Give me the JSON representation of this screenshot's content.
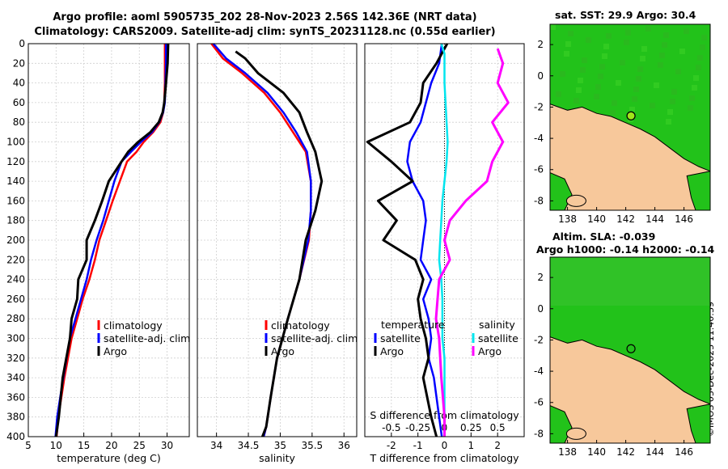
{
  "header": {
    "title_line1": "Argo profile: aoml 5905735_202 28-Nov-2023 2.56S 142.36E (NRT data)",
    "title_line2": "Climatology: CARS2009. Satellite-adj clim: synTS_20231128.nc (0.55d earlier)"
  },
  "colors": {
    "climatology": "#ff0000",
    "satellite": "#0000ff",
    "argo": "#000000",
    "satellite_salinity": "#00e5ee",
    "argo_salinity": "#ff00ff",
    "land": "#f7c89b",
    "sea": "#22c21a"
  },
  "chart_data": [
    {
      "id": "temperature",
      "type": "line",
      "xlabel": "temperature (deg C)",
      "ylabel": "",
      "xlim": [
        5,
        34
      ],
      "ylim": [
        0,
        400
      ],
      "y_reversed": true,
      "xticks": [
        "5",
        "10",
        "15",
        "20",
        "25",
        "30"
      ],
      "yticks": [
        "0",
        "20",
        "40",
        "60",
        "80",
        "100",
        "120",
        "140",
        "160",
        "180",
        "200",
        "220",
        "240",
        "260",
        "280",
        "300",
        "320",
        "340",
        "360",
        "380",
        "400"
      ],
      "legend": [
        "climatology",
        "satellite-adj. clim",
        "Argo"
      ],
      "legend_loc": "lower-right",
      "series": [
        {
          "name": "climatology",
          "color": "#ff0000",
          "x": [
            29.6,
            29.6,
            29.6,
            29.5,
            29.3,
            28.8,
            27.5,
            25.8,
            24.5,
            22.8,
            21.5,
            20.2,
            19.0,
            17.8,
            17.0,
            16.0,
            14.8,
            13.8,
            12.8,
            11.5,
            10.4,
            10.1
          ],
          "y": [
            0,
            20,
            40,
            60,
            70,
            80,
            90,
            100,
            110,
            120,
            140,
            160,
            180,
            200,
            220,
            240,
            260,
            280,
            300,
            340,
            380,
            400
          ]
        },
        {
          "name": "satellite-adj. clim",
          "color": "#0000ff",
          "x": [
            29.8,
            29.8,
            29.7,
            29.6,
            29.3,
            28.6,
            27.3,
            25.3,
            23.5,
            21.8,
            20.5,
            19.5,
            18.5,
            17.3,
            16.3,
            15.5,
            14.5,
            13.5,
            12.5,
            11.3,
            10.2,
            9.9
          ],
          "y": [
            0,
            20,
            40,
            60,
            70,
            80,
            90,
            100,
            110,
            120,
            140,
            160,
            180,
            200,
            220,
            240,
            260,
            280,
            300,
            340,
            380,
            400
          ]
        },
        {
          "name": "Argo",
          "color": "#000000",
          "x": [
            30.2,
            30.1,
            29.8,
            29.5,
            29.2,
            28.5,
            27.0,
            24.8,
            23.0,
            21.8,
            19.5,
            18.3,
            17.0,
            15.5,
            15.5,
            14.0,
            13.8,
            12.8,
            12.5,
            11.2,
            10.5,
            10.0
          ],
          "y": [
            0,
            20,
            40,
            60,
            70,
            80,
            90,
            100,
            110,
            120,
            140,
            160,
            180,
            200,
            220,
            240,
            260,
            280,
            300,
            340,
            380,
            400
          ]
        }
      ]
    },
    {
      "id": "salinity",
      "type": "line",
      "xlabel": "salinity",
      "ylabel": "",
      "xlim": [
        33.7,
        36.2
      ],
      "ylim": [
        0,
        400
      ],
      "y_reversed": true,
      "xticks": [
        "34",
        "34.5",
        "35",
        "35.5",
        "36"
      ],
      "legend": [
        "climatology",
        "satellite-adj. clim",
        "Argo"
      ],
      "legend_loc": "lower-right",
      "series": [
        {
          "name": "climatology",
          "color": "#ff0000",
          "x": [
            33.92,
            34.1,
            34.4,
            34.75,
            35.0,
            35.2,
            35.4,
            35.48,
            35.48,
            35.45,
            35.3,
            35.12,
            34.95,
            34.85,
            34.78,
            34.74
          ],
          "y": [
            0,
            15,
            30,
            50,
            70,
            90,
            110,
            140,
            170,
            200,
            240,
            280,
            320,
            360,
            390,
            400
          ]
        },
        {
          "name": "satellite-adj. clim",
          "color": "#0000ff",
          "x": [
            33.95,
            34.15,
            34.45,
            34.8,
            35.05,
            35.25,
            35.42,
            35.48,
            35.48,
            35.44,
            35.3,
            35.12,
            34.95,
            34.85,
            34.78,
            34.74
          ],
          "y": [
            0,
            15,
            30,
            50,
            70,
            90,
            110,
            140,
            170,
            200,
            240,
            280,
            320,
            360,
            390,
            400
          ]
        },
        {
          "name": "Argo",
          "color": "#000000",
          "x": [
            34.3,
            34.45,
            34.65,
            35.05,
            35.3,
            35.42,
            35.55,
            35.65,
            35.55,
            35.4,
            35.3,
            35.12,
            34.95,
            34.85,
            34.78,
            34.72
          ],
          "y": [
            8,
            15,
            30,
            50,
            70,
            90,
            110,
            140,
            170,
            200,
            240,
            280,
            320,
            360,
            390,
            400
          ]
        }
      ]
    },
    {
      "id": "differences",
      "type": "line",
      "xlabel": "T difference from climatology",
      "x2label": "S difference from climatology",
      "xlim": [
        -3,
        3
      ],
      "x2lim": [
        -0.75,
        0.75
      ],
      "ylim": [
        0,
        400
      ],
      "y_reversed": true,
      "xticks": [
        "-2",
        "-1",
        "0",
        "1",
        "2"
      ],
      "x2ticks": [
        "-0.5",
        "-0.25",
        "0",
        "0.25",
        "0.5"
      ],
      "legend_temperature_title": "temperature",
      "legend_salinity_title": "salinity",
      "legend_temperature": [
        "satellite",
        "Argo"
      ],
      "legend_salinity": [
        "satellite",
        "Argo"
      ],
      "series": [
        {
          "name": "temperature satellite",
          "axis": "T",
          "color": "#0000ff",
          "x": [
            -0.1,
            -0.2,
            -0.5,
            -0.7,
            -0.9,
            -1.3,
            -1.4,
            -1.2,
            -0.8,
            -0.7,
            -0.8,
            -0.9,
            -0.5,
            -0.8,
            -0.6,
            -0.5,
            -0.6,
            -0.4,
            -0.2,
            -0.1
          ],
          "y": [
            0,
            20,
            40,
            60,
            80,
            100,
            120,
            140,
            160,
            180,
            200,
            220,
            240,
            260,
            280,
            300,
            320,
            340,
            380,
            400
          ]
        },
        {
          "name": "temperature Argo",
          "axis": "T",
          "color": "#000000",
          "x": [
            0.1,
            -0.3,
            -0.8,
            -0.9,
            -1.3,
            -2.9,
            -2.0,
            -1.2,
            -2.5,
            -1.8,
            -2.3,
            -1.1,
            -0.8,
            -1.0,
            -0.9,
            -0.7,
            -0.6,
            -0.8,
            -0.5,
            -0.3
          ],
          "y": [
            0,
            20,
            40,
            60,
            80,
            100,
            120,
            140,
            160,
            180,
            200,
            220,
            240,
            260,
            280,
            300,
            320,
            340,
            380,
            400
          ]
        },
        {
          "name": "salinity satellite",
          "axis": "S",
          "color": "#00e5ee",
          "x": [
            -0.03,
            0.0,
            0.0,
            0.02,
            0.03,
            0.02,
            0.0,
            -0.02,
            -0.03,
            -0.04,
            -0.05,
            -0.03,
            -0.02,
            -0.02,
            0.0,
            0.0,
            0.0,
            0.0
          ],
          "y": [
            0,
            10,
            40,
            80,
            100,
            120,
            140,
            160,
            180,
            200,
            220,
            240,
            260,
            300,
            320,
            340,
            380,
            400
          ]
        },
        {
          "name": "salinity Argo",
          "axis": "S",
          "color": "#ff00ff",
          "x": [
            0.5,
            0.55,
            0.5,
            0.6,
            0.45,
            0.55,
            0.45,
            0.4,
            0.2,
            0.05,
            0.0,
            0.05,
            -0.05,
            -0.08,
            -0.05,
            -0.03,
            0.0,
            0.0
          ],
          "y": [
            5,
            20,
            40,
            60,
            80,
            100,
            120,
            140,
            160,
            180,
            200,
            220,
            240,
            280,
            300,
            340,
            380,
            400
          ]
        }
      ]
    }
  ],
  "maps": {
    "sst": {
      "title": "sat. SST: 29.9 Argo: 30.4",
      "xticks": [
        "138",
        "140",
        "142",
        "144",
        "146"
      ],
      "yticks": [
        "2",
        "0",
        "-2",
        "-4",
        "-6",
        "-8"
      ]
    },
    "sla": {
      "title_line1": "Altim. SLA: -0.039",
      "title_line2": "Argo h1000: -0.14 h2000: -0.14",
      "xticks": [
        "138",
        "140",
        "142",
        "144",
        "146"
      ],
      "yticks": [
        "2",
        "0",
        "-2",
        "-4",
        "-6",
        "-8"
      ]
    }
  },
  "credit": "©IMOS 03-Dec-2023 11:40:39"
}
